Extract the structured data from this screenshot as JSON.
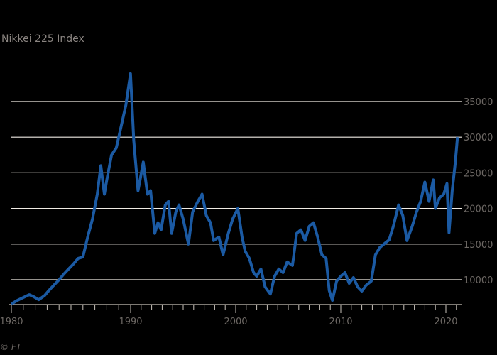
{
  "header": {
    "title": "Nikkei 225 Index"
  },
  "footer": {
    "credit": "© FT"
  },
  "colors": {
    "line": "#1b5aa3",
    "grid": "#f0ebe4",
    "axis": "#c9c2ba",
    "text": "#6d6864",
    "background": "#000000"
  },
  "chart_data": {
    "type": "line",
    "title": "Nikkei 225 Index",
    "xlabel": "",
    "ylabel": "",
    "xlim": [
      1980,
      2021.2
    ],
    "ylim": [
      6500,
      40000
    ],
    "grid": true,
    "legend": "none",
    "x_ticks": [
      "1980",
      "1990",
      "2000",
      "2010",
      "2020"
    ],
    "y_ticks": [
      "10000",
      "15000",
      "20000",
      "25000",
      "30000",
      "35000"
    ],
    "series": [
      {
        "name": "Nikkei 225",
        "x": [
          1980.0,
          1980.5,
          1981.0,
          1981.5,
          1981.9,
          1982.3,
          1982.8,
          1983.2,
          1983.6,
          1984.0,
          1984.4,
          1984.8,
          1985.2,
          1985.6,
          1986.0,
          1986.4,
          1986.8,
          1987.2,
          1987.5,
          1987.8,
          1988.0,
          1988.4,
          1988.8,
          1989.2,
          1989.6,
          1989.99,
          1990.3,
          1990.7,
          1990.9,
          1991.2,
          1991.6,
          1991.9,
          1992.3,
          1992.6,
          1992.9,
          1993.3,
          1993.6,
          1993.9,
          1994.3,
          1994.6,
          1995.0,
          1995.5,
          1995.9,
          1996.4,
          1996.8,
          1997.2,
          1997.6,
          1997.9,
          1998.4,
          1998.8,
          1999.3,
          1999.7,
          2000.2,
          2000.6,
          2000.9,
          2001.3,
          2001.7,
          2002.0,
          2002.4,
          2002.8,
          2003.3,
          2003.7,
          2004.1,
          2004.5,
          2004.9,
          2005.4,
          2005.8,
          2006.2,
          2006.6,
          2007.0,
          2007.4,
          2007.8,
          2008.2,
          2008.6,
          2008.9,
          2009.2,
          2009.6,
          2010.0,
          2010.4,
          2010.8,
          2011.2,
          2011.6,
          2012.0,
          2012.4,
          2012.9,
          2013.3,
          2013.7,
          2014.1,
          2014.6,
          2015.0,
          2015.5,
          2015.9,
          2016.3,
          2016.8,
          2017.2,
          2017.6,
          2018.0,
          2018.4,
          2018.8,
          2019.0,
          2019.4,
          2019.8,
          2020.1,
          2020.3,
          2020.6,
          2020.9,
          2021.1
        ],
        "values": [
          6600,
          7100,
          7500,
          7900,
          7600,
          7200,
          7800,
          8600,
          9300,
          10000,
          10800,
          11500,
          12200,
          13000,
          13200,
          16000,
          18500,
          22000,
          26000,
          22000,
          24000,
          27500,
          28500,
          31500,
          34500,
          38900,
          29500,
          22500,
          24000,
          26500,
          22000,
          22500,
          16500,
          18000,
          17000,
          20500,
          21000,
          16500,
          19500,
          20500,
          18500,
          15000,
          19500,
          21000,
          22000,
          19000,
          18000,
          15500,
          16000,
          13500,
          16500,
          18500,
          20000,
          16000,
          14000,
          13000,
          11000,
          10500,
          11500,
          9000,
          8000,
          10500,
          11500,
          11000,
          12500,
          12000,
          16500,
          17000,
          15500,
          17500,
          18000,
          16000,
          13500,
          13000,
          8500,
          7100,
          9800,
          10500,
          11000,
          9500,
          10300,
          9000,
          8400,
          9200,
          9800,
          13500,
          14500,
          15000,
          15600,
          17500,
          20500,
          19000,
          15500,
          17500,
          19500,
          21000,
          23700,
          21000,
          24000,
          20000,
          21500,
          22000,
          23500,
          16600,
          22500,
          26500,
          30000
        ]
      }
    ]
  }
}
